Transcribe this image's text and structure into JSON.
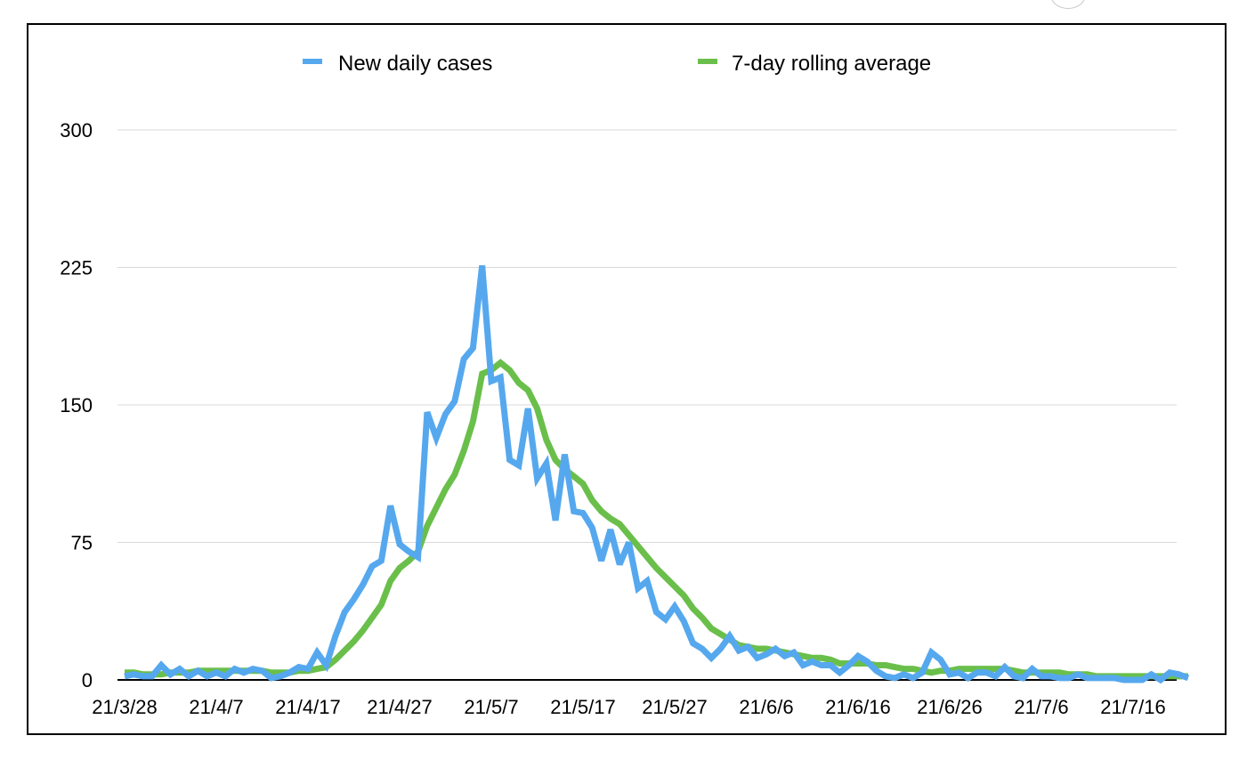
{
  "chart_data": {
    "type": "line",
    "title": "",
    "xlabel": "",
    "ylabel": "",
    "ylim": [
      0,
      300
    ],
    "yticks": [
      0,
      75,
      150,
      225,
      300
    ],
    "grid": true,
    "legend_position": "top",
    "x_start": "2021-03-28",
    "xtick_labels": [
      "21/3/28",
      "21/4/7",
      "21/4/17",
      "21/4/27",
      "21/5/7",
      "21/5/17",
      "21/5/27",
      "21/6/6",
      "21/6/16",
      "21/6/26",
      "21/7/6",
      "21/7/16"
    ],
    "series": [
      {
        "name": "New daily cases",
        "color": "#56a8ee",
        "values": [
          2,
          3,
          2,
          2,
          8,
          3,
          6,
          2,
          5,
          2,
          4,
          2,
          6,
          4,
          6,
          5,
          1,
          2,
          4,
          7,
          6,
          15,
          8,
          24,
          37,
          44,
          52,
          62,
          65,
          95,
          74,
          70,
          67,
          146,
          132,
          145,
          152,
          175,
          181,
          226,
          163,
          165,
          120,
          117,
          148,
          110,
          118,
          87,
          123,
          92,
          91,
          83,
          65,
          82,
          63,
          75,
          50,
          54,
          37,
          33,
          40,
          32,
          20,
          17,
          12,
          17,
          24,
          16,
          18,
          12,
          14,
          17,
          13,
          15,
          8,
          10,
          8,
          8,
          4,
          8,
          13,
          10,
          5,
          2,
          1,
          3,
          1,
          4,
          15,
          11,
          3,
          4,
          1,
          4,
          4,
          2,
          7,
          2,
          1,
          6,
          2,
          2,
          1,
          1,
          3,
          1,
          1,
          1,
          1,
          0,
          0,
          0,
          3,
          0,
          4,
          3,
          1
        ]
      },
      {
        "name": "7-day rolling average",
        "color": "#6abf4b",
        "values": [
          4,
          4,
          3,
          3,
          3,
          4,
          4,
          4,
          5,
          5,
          5,
          5,
          5,
          5,
          5,
          5,
          4,
          4,
          4,
          5,
          5,
          6,
          7,
          11,
          16,
          21,
          27,
          34,
          41,
          54,
          61,
          65,
          70,
          84,
          94,
          104,
          112,
          125,
          141,
          167,
          169,
          173,
          169,
          162,
          158,
          148,
          131,
          120,
          115,
          111,
          107,
          98,
          92,
          88,
          85,
          79,
          73,
          67,
          61,
          56,
          51,
          46,
          39,
          34,
          28,
          25,
          22,
          19,
          18,
          17,
          17,
          16,
          15,
          14,
          13,
          12,
          12,
          11,
          9,
          9,
          9,
          9,
          8,
          8,
          7,
          6,
          6,
          5,
          4,
          5,
          5,
          6,
          6,
          6,
          6,
          6,
          6,
          5,
          4,
          4,
          4,
          4,
          4,
          3,
          3,
          3,
          2,
          2,
          2,
          2,
          2,
          2,
          2,
          2,
          2,
          2,
          2
        ]
      }
    ]
  }
}
